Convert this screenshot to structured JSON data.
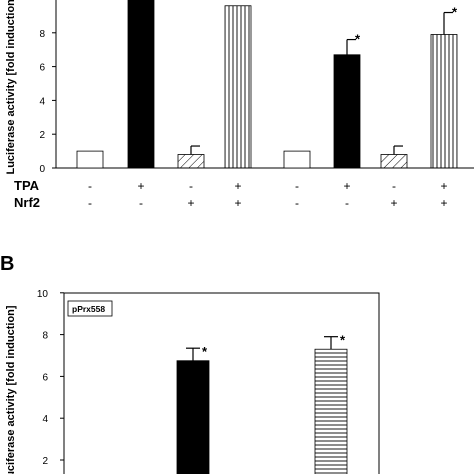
{
  "chart_data": [
    {
      "type": "bar",
      "panel": "",
      "ylabel": "Luciferase activity [fold induction]",
      "ylim": [
        0,
        10
      ],
      "yticks": [
        "0",
        "2",
        "4",
        "6",
        "8"
      ],
      "grid": false,
      "rows": [
        {
          "label": "TPA",
          "values": [
            "-",
            "+",
            "-",
            "+",
            "-",
            "+",
            "-",
            "+"
          ]
        },
        {
          "label": "Nrf2",
          "values": [
            "-",
            "-",
            "+",
            "+",
            "-",
            "-",
            "+",
            "+"
          ]
        }
      ],
      "bars": [
        {
          "value": 1.0,
          "error": 0,
          "fill": "white",
          "sig": ""
        },
        {
          "value": 10.5,
          "error": 0,
          "fill": "black",
          "sig": ""
        },
        {
          "value": 0.8,
          "error": 0.5,
          "fill": "diagonal",
          "sig": ""
        },
        {
          "value": 9.6,
          "error": 0,
          "fill": "vertical",
          "sig": ""
        },
        {
          "value": 1.0,
          "error": 0,
          "fill": "white",
          "sig": ""
        },
        {
          "value": 6.7,
          "error": 0.9,
          "fill": "black",
          "sig": "*"
        },
        {
          "value": 0.8,
          "error": 0.5,
          "fill": "diagonal",
          "sig": ""
        },
        {
          "value": 7.9,
          "error": 1.3,
          "fill": "vertical",
          "sig": "*"
        }
      ]
    },
    {
      "type": "bar",
      "panel": "B",
      "inset_label": "pPrx558",
      "ylabel": "Luciferase activity [fold induction]",
      "ylim": [
        0,
        10
      ],
      "yticks": [
        "2",
        "4",
        "6",
        "8",
        "10"
      ],
      "grid": false,
      "bars": [
        {
          "value": 6.75,
          "error": 0.6,
          "fill": "black",
          "sig": "*"
        },
        {
          "value": 7.3,
          "error": 0.6,
          "fill": "horizontal",
          "sig": "*"
        }
      ]
    }
  ]
}
